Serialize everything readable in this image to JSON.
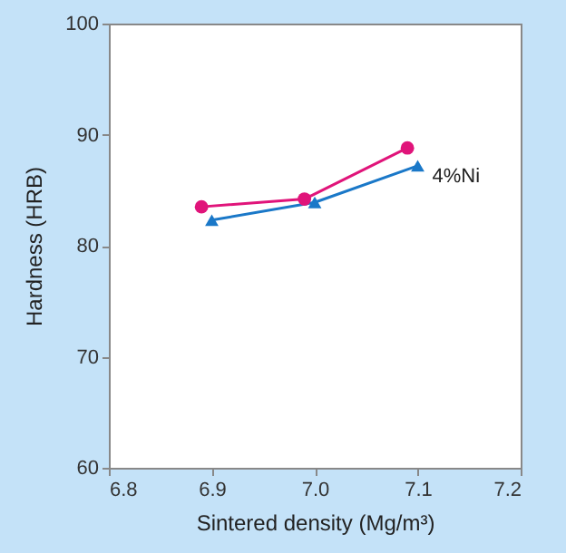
{
  "chart_data": {
    "type": "line",
    "xlabel": "Sintered density (Mg/m³)",
    "ylabel": "Hardness (HRB)",
    "xlim": [
      6.8,
      7.2
    ],
    "xticks": [
      6.8,
      6.9,
      {
        "value": 7,
        "label": "7.0"
      },
      7.1,
      7.2
    ],
    "ylim": [
      60,
      100
    ],
    "yticks": [
      60,
      70,
      80,
      90,
      100
    ],
    "grid": false,
    "series": [
      {
        "color": "#e0147a",
        "marker": "circle",
        "x": [
          6.89,
          6.99,
          7.09
        ],
        "values": [
          83.5,
          84.2,
          88.8
        ]
      },
      {
        "name": "4%Ni",
        "color": "#1a78c8",
        "marker": "triangle",
        "x": [
          6.9,
          7.0,
          7.1
        ],
        "values": [
          82.3,
          83.9,
          87.2
        ]
      }
    ]
  }
}
